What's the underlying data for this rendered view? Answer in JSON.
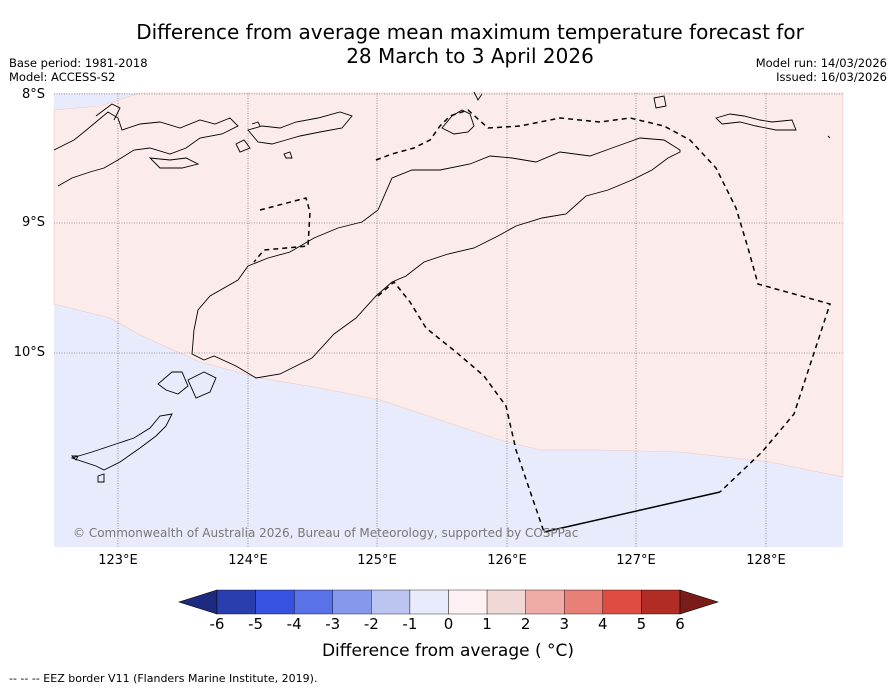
{
  "title": {
    "line1": "Difference from average mean maximum temperature forecast for",
    "line2": "28 March to 3 April 2026"
  },
  "meta_left": {
    "base_period": "Base period: 1981-2018",
    "model": "Model: ACCESS-S2"
  },
  "meta_right": {
    "model_run": "Model run: 14/03/2026",
    "issued": "Issued: 16/03/2026"
  },
  "axes": {
    "lat_labels": [
      "8°S",
      "9°S",
      "10°S"
    ],
    "lon_labels": [
      "123°E",
      "124°E",
      "125°E",
      "126°E",
      "127°E",
      "128°E"
    ]
  },
  "copyright": "© Commonwealth of Australia 2026, Bureau of Meteorology, supported by COSPPac",
  "colorbar": {
    "ticks": [
      "-6",
      "-5",
      "-4",
      "-3",
      "-2",
      "-1",
      "0",
      "1",
      "2",
      "3",
      "4",
      "5",
      "6"
    ],
    "label": "Difference from average ( °C)",
    "colors": [
      "#2a3fae",
      "#3752e0",
      "#5a72e8",
      "#8498ec",
      "#bcc5f2",
      "#e8ebfb",
      "#fdf1f1",
      "#f0d8d6",
      "#efaba5",
      "#e88078",
      "#df4d42",
      "#b02c24"
    ],
    "extend_low_color": "#1c2a80",
    "extend_high_color": "#7a1d18"
  },
  "map_colors": {
    "warm_region": "#fbeceb",
    "cool_region": "#e8ebfb"
  },
  "footer": "--  --  -- EEZ border V11 (Flanders Marine Institute, 2019)."
}
